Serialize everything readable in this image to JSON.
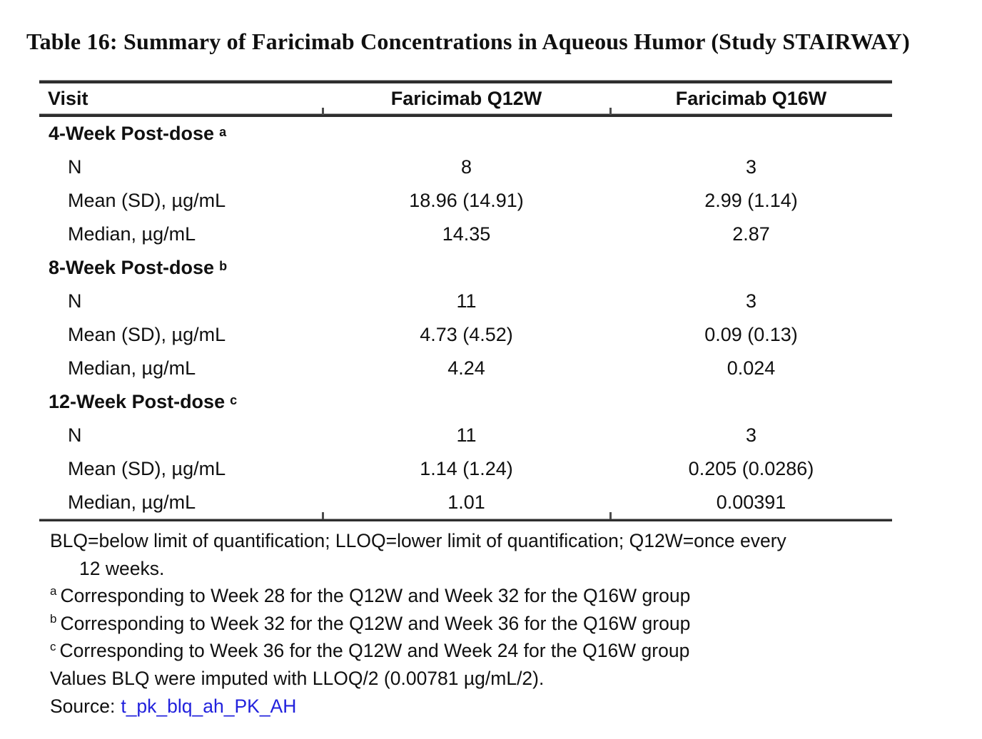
{
  "title": "Table 16: Summary of Faricimab Concentrations in Aqueous Humor (Study STAIRWAY)",
  "table": {
    "columns": [
      "Visit",
      "Faricimab Q12W",
      "Faricimab Q16W"
    ],
    "sections": [
      {
        "label": "4-Week Post-dose",
        "footnote_ref": "a",
        "rows": [
          {
            "label": "N",
            "q12w": "8",
            "q16w": "3"
          },
          {
            "label": "Mean (SD), µg/mL",
            "q12w": "18.96 (14.91)",
            "q16w": "2.99 (1.14)"
          },
          {
            "label": "Median, µg/mL",
            "q12w": "14.35",
            "q16w": "2.87"
          }
        ]
      },
      {
        "label": "8-Week Post-dose",
        "footnote_ref": "b",
        "rows": [
          {
            "label": "N",
            "q12w": "11",
            "q16w": "3"
          },
          {
            "label": "Mean (SD), µg/mL",
            "q12w": "4.73 (4.52)",
            "q16w": "0.09 (0.13)"
          },
          {
            "label": "Median, µg/mL",
            "q12w": "4.24",
            "q16w": "0.024"
          }
        ]
      },
      {
        "label": "12-Week Post-dose",
        "footnote_ref": "c",
        "rows": [
          {
            "label": "N",
            "q12w": "11",
            "q16w": "3"
          },
          {
            "label": "Mean (SD), µg/mL",
            "q12w": "1.14 (1.24)",
            "q16w": "0.205 (0.0286)"
          },
          {
            "label": "Median, µg/mL",
            "q12w": "1.01",
            "q16w": "0.00391"
          }
        ]
      }
    ]
  },
  "footnotes": {
    "abbrev_line1": "BLQ=below limit of quantification; LLOQ=lower limit of quantification; Q12W=once every",
    "abbrev_line2": "12 weeks.",
    "ref_a": "a",
    "text_a": "Corresponding to Week 28 for the Q12W and Week 32 for the Q16W group",
    "ref_b": "b",
    "text_b": "Corresponding to Week 32 for the Q12W and Week 36 for the Q16W group",
    "ref_c": "c",
    "text_c": "Corresponding to Week 36 for the Q12W and Week 24 for the Q16W group",
    "imputation": "Values BLQ were imputed with LLOQ/2 (0.00781 µg/mL/2).",
    "source_label": "Source:",
    "source_link": "t_pk_blq_ah_PK_AH"
  },
  "colors": {
    "link_blue": "#2222dd",
    "rule_dark": "#2e2e2e",
    "text": "#101010"
  }
}
